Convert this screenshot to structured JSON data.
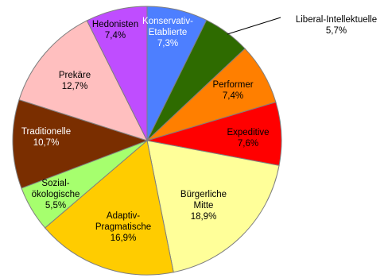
{
  "chart_data": {
    "type": "pie",
    "start_angle_deg": 0,
    "direction": "clockwise",
    "slice_border_color": "#7f7f7f",
    "slices": [
      {
        "label_lines": [
          "Konservativ-",
          "Etablierte"
        ],
        "value_label": "7,3%",
        "value": 7.3,
        "color": "#4d7fff",
        "text_color": "#ffffff"
      },
      {
        "label_lines": [
          "Liberal-Intellektuelle"
        ],
        "value_label": "5,7%",
        "value": 5.7,
        "color": "#2e6b00",
        "text_color": "#000000"
      },
      {
        "label_lines": [
          "Performer"
        ],
        "value_label": "7,4%",
        "value": 7.4,
        "color": "#ff7f00",
        "text_color": "#000000"
      },
      {
        "label_lines": [
          "Expeditive"
        ],
        "value_label": "7,6%",
        "value": 7.6,
        "color": "#ff0000",
        "text_color": "#000000"
      },
      {
        "label_lines": [
          "Bürgerliche",
          "Mitte"
        ],
        "value_label": "18,9%",
        "value": 18.9,
        "color": "#ffff99",
        "text_color": "#000000"
      },
      {
        "label_lines": [
          "Adaptiv-",
          "Pragmatische"
        ],
        "value_label": "16,9%",
        "value": 16.9,
        "color": "#ffcc00",
        "text_color": "#000000"
      },
      {
        "label_lines": [
          "Sozial-",
          "ökologische"
        ],
        "value_label": "5,5%",
        "value": 5.5,
        "color": "#a6ff6e",
        "text_color": "#000000"
      },
      {
        "label_lines": [
          "Traditionelle"
        ],
        "value_label": "10,7%",
        "value": 10.7,
        "color": "#7a2e00",
        "text_color": "#ffffff"
      },
      {
        "label_lines": [
          "Prekäre"
        ],
        "value_label": "12,7%",
        "value": 12.7,
        "color": "#ffbfbf",
        "text_color": "#000000"
      },
      {
        "label_lines": [
          "Hedonisten"
        ],
        "value_label": "7,4%",
        "value": 7.4,
        "color": "#bf4dff",
        "text_color": "#000000"
      }
    ]
  }
}
